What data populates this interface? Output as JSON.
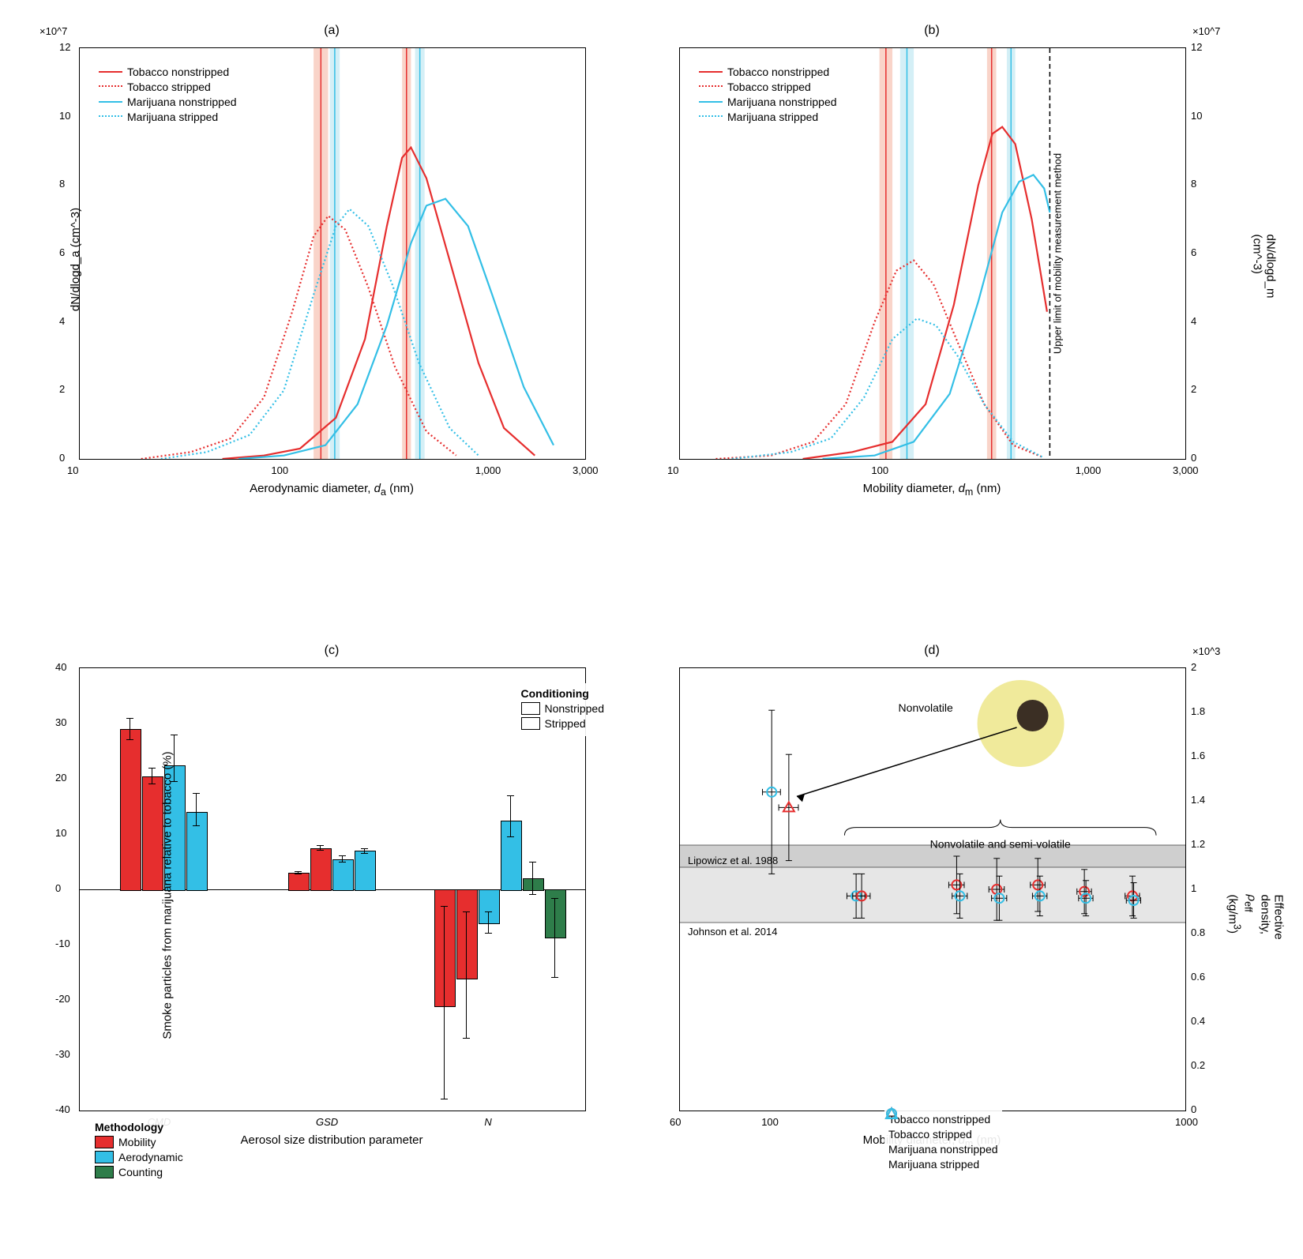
{
  "panelA": {
    "title": "(a)",
    "xlabel": "Aerodynamic diameter, d_a (nm)",
    "ylabel": "dN/dlogd_a (cm^-3)",
    "xlim": [
      10,
      3000
    ],
    "ylim": [
      0,
      12
    ],
    "yscale": 10000000.0,
    "ytop_label": "×10^7",
    "xticks": [
      10,
      100,
      1000,
      3000
    ],
    "yticks": [
      0,
      2,
      4,
      6,
      8,
      10,
      12
    ],
    "series": [
      {
        "name": "Tobacco nonstripped",
        "color": "#e62e2e",
        "style": "solid",
        "x": [
          50,
          80,
          120,
          180,
          250,
          320,
          380,
          420,
          500,
          650,
          900,
          1200,
          1700
        ],
        "y": [
          0,
          0.1,
          0.3,
          1.2,
          3.5,
          6.8,
          8.8,
          9.1,
          8.2,
          5.8,
          2.8,
          0.9,
          0.1
        ]
      },
      {
        "name": "Tobacco stripped",
        "color": "#e62e2e",
        "style": "dotted",
        "x": [
          20,
          35,
          55,
          80,
          110,
          140,
          165,
          200,
          260,
          350,
          500,
          700
        ],
        "y": [
          0,
          0.2,
          0.6,
          1.8,
          4.3,
          6.5,
          7.1,
          6.7,
          5.0,
          2.7,
          0.8,
          0.1
        ]
      },
      {
        "name": "Marijuana nonstripped",
        "color": "#33bfe6",
        "style": "solid",
        "x": [
          60,
          100,
          160,
          230,
          320,
          420,
          500,
          620,
          800,
          1050,
          1500,
          2100
        ],
        "y": [
          0,
          0.1,
          0.4,
          1.6,
          3.9,
          6.3,
          7.4,
          7.6,
          6.8,
          4.8,
          2.1,
          0.4
        ]
      },
      {
        "name": "Marijuana stripped",
        "color": "#33bfe6",
        "style": "dotted",
        "x": [
          25,
          42,
          68,
          100,
          140,
          180,
          210,
          260,
          340,
          460,
          650,
          900
        ],
        "y": [
          0,
          0.2,
          0.7,
          2.0,
          4.8,
          6.8,
          7.3,
          6.8,
          5.1,
          2.8,
          0.9,
          0.1
        ]
      }
    ],
    "bands": [
      {
        "x": 140,
        "w": 25,
        "color": "#f5b8a5"
      },
      {
        "x": 168,
        "w": 20,
        "color": "#b8e5f0"
      },
      {
        "x": 380,
        "w": 40,
        "color": "#f5b8a5"
      },
      {
        "x": 440,
        "w": 50,
        "color": "#b8e5f0"
      }
    ]
  },
  "panelB": {
    "title": "(b)",
    "xlabel": "Mobility diameter, d_m (nm)",
    "ylabel": "dN/dlogd_m (cm^-3)",
    "xlim": [
      10,
      3000
    ],
    "ylim": [
      0,
      12
    ],
    "yscale": 10000000.0,
    "ytop_label": "×10^7",
    "xticks": [
      10,
      100,
      1000,
      3000
    ],
    "yticks": [
      0,
      2,
      4,
      6,
      8,
      10,
      12
    ],
    "vline": {
      "x": 650,
      "label": "Upper limit of mobility measurement method"
    },
    "series": [
      {
        "name": "Tobacco nonstripped",
        "color": "#e62e2e",
        "style": "solid",
        "x": [
          40,
          70,
          110,
          160,
          220,
          290,
          340,
          380,
          440,
          530,
          630
        ],
        "y": [
          0,
          0.2,
          0.5,
          1.6,
          4.5,
          8.0,
          9.5,
          9.7,
          9.2,
          7.0,
          4.3
        ]
      },
      {
        "name": "Tobacco stripped",
        "color": "#e62e2e",
        "style": "dotted",
        "x": [
          15,
          28,
          45,
          65,
          90,
          115,
          140,
          175,
          230,
          310,
          430,
          600
        ],
        "y": [
          0,
          0.1,
          0.5,
          1.6,
          4.0,
          5.5,
          5.8,
          5.1,
          3.4,
          1.6,
          0.4,
          0.05
        ]
      },
      {
        "name": "Marijuana nonstripped",
        "color": "#33bfe6",
        "style": "solid",
        "x": [
          50,
          90,
          140,
          210,
          290,
          380,
          460,
          540,
          610,
          650
        ],
        "y": [
          0,
          0.1,
          0.5,
          1.9,
          4.6,
          7.2,
          8.1,
          8.3,
          7.9,
          7.2
        ]
      },
      {
        "name": "Marijuana stripped",
        "color": "#33bfe6",
        "style": "dotted",
        "x": [
          18,
          35,
          55,
          80,
          110,
          145,
          180,
          230,
          310,
          430,
          600
        ],
        "y": [
          0,
          0.2,
          0.6,
          1.8,
          3.5,
          4.1,
          3.9,
          3.0,
          1.6,
          0.5,
          0.05
        ]
      }
    ],
    "bands": [
      {
        "x": 95,
        "w": 15,
        "color": "#f5b8a5"
      },
      {
        "x": 120,
        "w": 20,
        "color": "#b8e5f0"
      },
      {
        "x": 320,
        "w": 35,
        "color": "#f5b8a5"
      },
      {
        "x": 400,
        "w": 40,
        "color": "#b8e5f0"
      }
    ]
  },
  "panelC": {
    "title": "(c)",
    "xlabel": "Aerosol size distribution parameter",
    "ylabel": "Smoke particles from marijuana relative to tobacco (%)",
    "ylim": [
      -40,
      40
    ],
    "yticks": [
      -40,
      -30,
      -20,
      -10,
      0,
      10,
      20,
      30,
      40
    ],
    "groups": [
      "CMD",
      "GSD",
      "N"
    ],
    "legendA": {
      "title": "Conditioning",
      "items": [
        "Nonstripped",
        "Stripped"
      ]
    },
    "legendB": {
      "title": "Methodology",
      "items": [
        {
          "label": "Mobility",
          "color": "#e62e2e"
        },
        {
          "label": "Aerodynamic",
          "color": "#33bfe6"
        },
        {
          "label": "Counting",
          "color": "#2e7d4a"
        }
      ]
    },
    "bars": [
      {
        "g": 0,
        "i": 0,
        "v": 29,
        "el": 2,
        "eh": 2,
        "color": "#e62e2e",
        "h": false
      },
      {
        "g": 0,
        "i": 1,
        "v": 20.5,
        "el": 1.5,
        "eh": 1.5,
        "color": "#e62e2e",
        "h": true
      },
      {
        "g": 0,
        "i": 2,
        "v": 22.5,
        "el": 3,
        "eh": 5.5,
        "color": "#33bfe6",
        "h": false
      },
      {
        "g": 0,
        "i": 3,
        "v": 14,
        "el": 2.5,
        "eh": 3.5,
        "color": "#33bfe6",
        "h": true
      },
      {
        "g": 1,
        "i": 0,
        "v": 3,
        "el": 0.3,
        "eh": 0.3,
        "color": "#e62e2e",
        "h": false
      },
      {
        "g": 1,
        "i": 1,
        "v": 7.5,
        "el": 0.5,
        "eh": 0.5,
        "color": "#e62e2e",
        "h": true
      },
      {
        "g": 1,
        "i": 2,
        "v": 5.5,
        "el": 0.7,
        "eh": 0.7,
        "color": "#33bfe6",
        "h": false
      },
      {
        "g": 1,
        "i": 3,
        "v": 7,
        "el": 0.5,
        "eh": 0.5,
        "color": "#33bfe6",
        "h": true
      },
      {
        "g": 2,
        "i": 0,
        "v": -21,
        "el": 17,
        "eh": 18,
        "color": "#e62e2e",
        "h": false
      },
      {
        "g": 2,
        "i": 1,
        "v": -16,
        "el": 11,
        "eh": 12,
        "color": "#e62e2e",
        "h": true
      },
      {
        "g": 2,
        "i": 2,
        "v": -6,
        "el": 2,
        "eh": 2,
        "color": "#33bfe6",
        "h": false
      },
      {
        "g": 2,
        "i": 3,
        "v": 12.5,
        "el": 3,
        "eh": 4.5,
        "color": "#33bfe6",
        "h": true
      },
      {
        "g": 2,
        "i": 4,
        "v": 2,
        "el": 3,
        "eh": 3,
        "color": "#2e7d4a",
        "h": false
      },
      {
        "g": 2,
        "i": 5,
        "v": -8.5,
        "el": 7.5,
        "eh": 7,
        "color": "#2e7d4a",
        "h": true
      }
    ]
  },
  "panelD": {
    "title": "(d)",
    "xlabel": "Mobility diameter, d_m (nm)",
    "ylabel": "Effective density, ρ_eff (kg/m^3)",
    "xlim": [
      60,
      1000
    ],
    "ylim": [
      0,
      2
    ],
    "yscale": 1000,
    "ytop_label": "×10^3",
    "xticks": [
      60,
      100,
      1000
    ],
    "yticks": [
      0,
      0.2,
      0.4,
      0.6,
      0.8,
      1,
      1.2,
      1.4,
      1.6,
      1.8,
      2
    ],
    "band1": {
      "lo": 0.85,
      "hi": 1.1,
      "color": "#e6e6e6",
      "label": "Johnson et al. 2014"
    },
    "band2": {
      "lo": 1.1,
      "hi": 1.2,
      "color": "#cfcfcf",
      "label": "Lipowicz et al. 1988"
    },
    "annot": {
      "nv": "Nonvolatile",
      "nvsv": "Nonvolatile and semi-volatile"
    },
    "legend": [
      {
        "label": "Tobacco nonstripped",
        "color": "#e62e2e",
        "shape": "circle"
      },
      {
        "label": "Tobacco stripped",
        "color": "#e62e2e",
        "shape": "triangle"
      },
      {
        "label": "Marijuana nonstripped",
        "color": "#33bfe6",
        "shape": "circle"
      },
      {
        "label": "Marijuana stripped",
        "color": "#33bfe6",
        "shape": "triangle"
      }
    ],
    "points": [
      {
        "x": 100,
        "y": 1.44,
        "ey": 0.37,
        "ex": 5,
        "color": "#33bfe6",
        "shape": "circle"
      },
      {
        "x": 110,
        "y": 1.37,
        "ey": 0.24,
        "ex": 6,
        "color": "#e62e2e",
        "shape": "triangle"
      },
      {
        "x": 160,
        "y": 0.97,
        "ey": 0.1,
        "ex": 8,
        "color": "#33bfe6",
        "shape": "circle"
      },
      {
        "x": 165,
        "y": 0.97,
        "ey": 0.1,
        "ex": 8,
        "color": "#e62e2e",
        "shape": "circle"
      },
      {
        "x": 280,
        "y": 1.02,
        "ey": 0.13,
        "ex": 12,
        "color": "#e62e2e",
        "shape": "circle"
      },
      {
        "x": 285,
        "y": 0.97,
        "ey": 0.1,
        "ex": 12,
        "color": "#33bfe6",
        "shape": "circle"
      },
      {
        "x": 350,
        "y": 1.0,
        "ey": 0.14,
        "ex": 15,
        "color": "#e62e2e",
        "shape": "circle"
      },
      {
        "x": 355,
        "y": 0.96,
        "ey": 0.1,
        "ex": 15,
        "color": "#33bfe6",
        "shape": "circle"
      },
      {
        "x": 440,
        "y": 1.02,
        "ey": 0.12,
        "ex": 18,
        "color": "#e62e2e",
        "shape": "circle"
      },
      {
        "x": 445,
        "y": 0.97,
        "ey": 0.09,
        "ex": 18,
        "color": "#33bfe6",
        "shape": "circle"
      },
      {
        "x": 570,
        "y": 0.99,
        "ey": 0.1,
        "ex": 23,
        "color": "#e62e2e",
        "shape": "circle"
      },
      {
        "x": 575,
        "y": 0.96,
        "ey": 0.08,
        "ex": 23,
        "color": "#33bfe6",
        "shape": "circle"
      },
      {
        "x": 745,
        "y": 0.97,
        "ey": 0.09,
        "ex": 30,
        "color": "#e62e2e",
        "shape": "circle"
      },
      {
        "x": 750,
        "y": 0.95,
        "ey": 0.08,
        "ex": 30,
        "color": "#33bfe6",
        "shape": "circle"
      }
    ]
  }
}
